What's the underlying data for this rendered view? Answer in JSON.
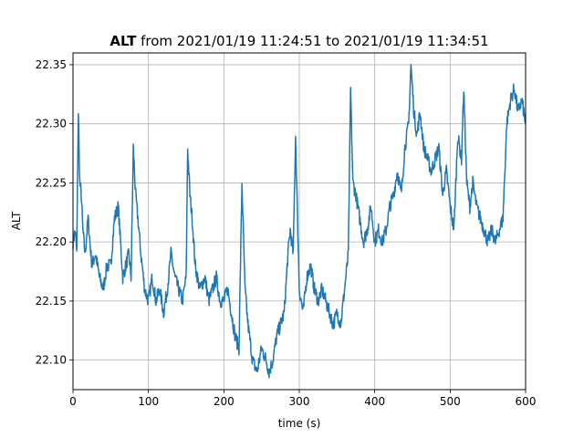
{
  "chart_data": {
    "type": "line",
    "title": {
      "variable": "ALT",
      "rest": " from 2021/01/19 11:24:51 to 2021/01/19 11:34:51"
    },
    "xlabel": "time (s)",
    "ylabel": "ALT",
    "xlim": [
      0,
      600
    ],
    "ylim": [
      22.075,
      22.36
    ],
    "xticks": [
      0,
      100,
      200,
      300,
      400,
      500,
      600
    ],
    "yticks": [
      22.1,
      22.15,
      22.2,
      22.25,
      22.3,
      22.35
    ],
    "xtick_labels": [
      "0",
      "100",
      "200",
      "300",
      "400",
      "500",
      "600"
    ],
    "ytick_labels": [
      "22.10",
      "22.15",
      "22.20",
      "22.25",
      "22.30",
      "22.35"
    ],
    "grid": true,
    "line_color": "#1f77b4",
    "series": [
      {
        "x": [
          0,
          3,
          5,
          7,
          9,
          11,
          13,
          16,
          20,
          25,
          30,
          35,
          40,
          45,
          50,
          55,
          60,
          63,
          66,
          70,
          74,
          77,
          80,
          83,
          86,
          90,
          95,
          100,
          105,
          110,
          115,
          120,
          125,
          130,
          135,
          140,
          145,
          150,
          152,
          155,
          158,
          162,
          168,
          175,
          180,
          185,
          190,
          195,
          200,
          205,
          210,
          215,
          220,
          224,
          228,
          232,
          238,
          244,
          250,
          256,
          260,
          265,
          270,
          275,
          280,
          285,
          288,
          292,
          295,
          300,
          305,
          310,
          315,
          320,
          325,
          330,
          335,
          340,
          345,
          350,
          355,
          360,
          365,
          368,
          371,
          375,
          380,
          385,
          390,
          395,
          400,
          405,
          410,
          415,
          420,
          425,
          430,
          435,
          440,
          445,
          448,
          452,
          456,
          460,
          465,
          470,
          475,
          480,
          485,
          490,
          495,
          500,
          505,
          510,
          515,
          518,
          522,
          526,
          530,
          535,
          540,
          545,
          550,
          555,
          560,
          565,
          570,
          575,
          580,
          585,
          590,
          595,
          600
        ],
        "y": [
          22.2,
          22.21,
          22.19,
          22.31,
          22.25,
          22.24,
          22.21,
          22.19,
          22.22,
          22.18,
          22.19,
          22.17,
          22.16,
          22.18,
          22.18,
          22.22,
          22.23,
          22.2,
          22.17,
          22.18,
          22.19,
          22.17,
          22.28,
          22.24,
          22.22,
          22.19,
          22.16,
          22.15,
          22.17,
          22.15,
          22.16,
          22.14,
          22.16,
          22.19,
          22.17,
          22.16,
          22.15,
          22.17,
          22.28,
          22.24,
          22.22,
          22.18,
          22.16,
          22.17,
          22.15,
          22.16,
          22.17,
          22.15,
          22.15,
          22.16,
          22.14,
          22.12,
          22.11,
          22.25,
          22.16,
          22.13,
          22.1,
          22.09,
          22.11,
          22.1,
          22.09,
          22.1,
          22.12,
          22.13,
          22.14,
          22.19,
          22.21,
          22.19,
          22.29,
          22.16,
          22.14,
          22.17,
          22.18,
          22.16,
          22.15,
          22.16,
          22.15,
          22.14,
          22.13,
          22.14,
          22.13,
          22.16,
          22.19,
          22.33,
          22.25,
          22.24,
          22.22,
          22.2,
          22.21,
          22.23,
          22.2,
          22.21,
          22.2,
          22.21,
          22.23,
          22.24,
          22.26,
          22.24,
          22.28,
          22.3,
          22.35,
          22.31,
          22.29,
          22.31,
          22.28,
          22.27,
          22.26,
          22.27,
          22.28,
          22.24,
          22.26,
          22.23,
          22.21,
          22.29,
          22.27,
          22.33,
          22.25,
          22.23,
          22.25,
          22.23,
          22.22,
          22.21,
          22.2,
          22.21,
          22.2,
          22.21,
          22.22,
          22.3,
          22.32,
          22.33,
          22.31,
          22.32,
          22.3
        ]
      }
    ]
  }
}
